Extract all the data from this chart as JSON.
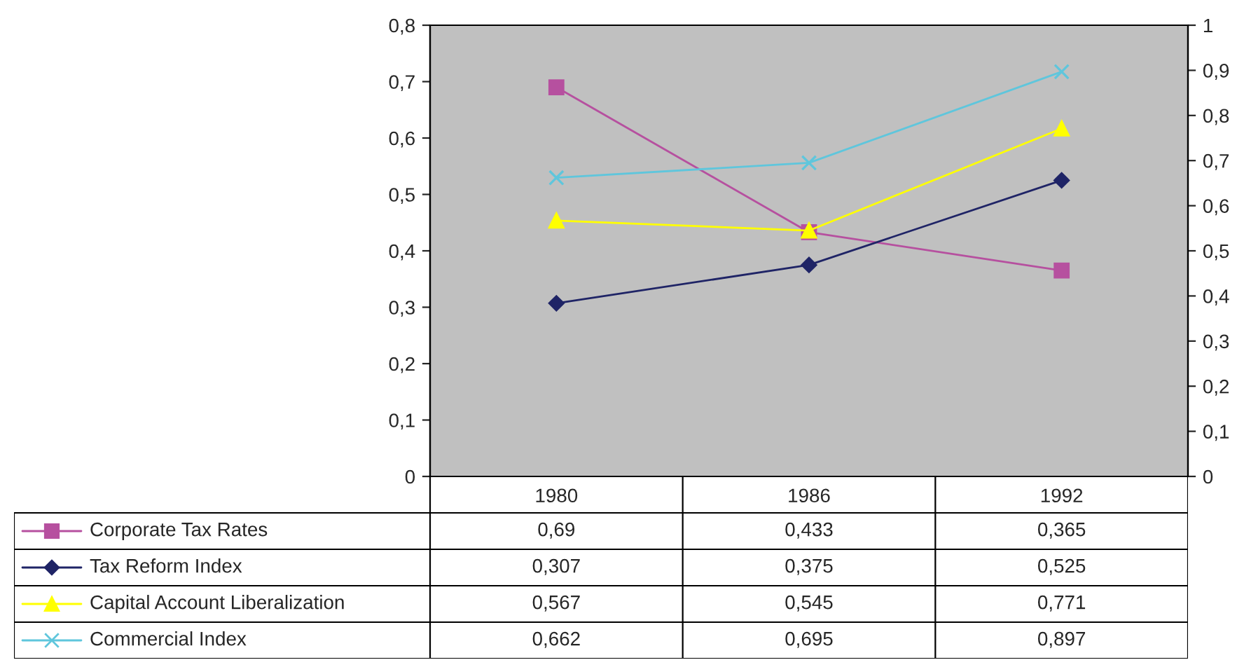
{
  "chart_data": {
    "type": "line",
    "categories": [
      "1980",
      "1986",
      "1992"
    ],
    "series": [
      {
        "name": "Corporate Tax Rates",
        "color": "#b6509f",
        "marker": "square",
        "values": [
          0.69,
          0.433,
          0.365
        ],
        "value_labels": [
          "0,69",
          "0,433",
          "0,365"
        ]
      },
      {
        "name": "Tax Reform Index",
        "color": "#1f2466",
        "marker": "diamond",
        "values": [
          0.307,
          0.375,
          0.525
        ],
        "value_labels": [
          "0,307",
          "0,375",
          "0,525"
        ]
      },
      {
        "name": "Capital Account Liberalization",
        "color": "#ffff00",
        "marker": "triangle",
        "axis": "y2",
        "values": [
          0.567,
          0.545,
          0.771
        ],
        "value_labels": [
          "0,567",
          "0,545",
          "0,771"
        ]
      },
      {
        "name": "Commercial Index",
        "color": "#5fc6dc",
        "marker": "cross",
        "axis": "y2",
        "values": [
          0.662,
          0.695,
          0.897
        ],
        "value_labels": [
          "0,662",
          "0,695",
          "0,897"
        ]
      }
    ],
    "ylim": [
      0,
      0.8
    ],
    "yticks": [
      {
        "value": 0,
        "label": "0"
      },
      {
        "value": 0.1,
        "label": "0,1"
      },
      {
        "value": 0.2,
        "label": "0,2"
      },
      {
        "value": 0.3,
        "label": "0,3"
      },
      {
        "value": 0.4,
        "label": "0,4"
      },
      {
        "value": 0.5,
        "label": "0,5"
      },
      {
        "value": 0.6,
        "label": "0,6"
      },
      {
        "value": 0.7,
        "label": "0,7"
      },
      {
        "value": 0.8,
        "label": "0,8"
      }
    ],
    "y2lim": [
      0,
      1
    ],
    "y2ticks": [
      {
        "value": 0,
        "label": "0"
      },
      {
        "value": 0.1,
        "label": "0,1"
      },
      {
        "value": 0.2,
        "label": "0,2"
      },
      {
        "value": 0.3,
        "label": "0,3"
      },
      {
        "value": 0.4,
        "label": "0,4"
      },
      {
        "value": 0.5,
        "label": "0,5"
      },
      {
        "value": 0.6,
        "label": "0,6"
      },
      {
        "value": 0.7,
        "label": "0,7"
      },
      {
        "value": 0.8,
        "label": "0,8"
      },
      {
        "value": 0.9,
        "label": "0,9"
      },
      {
        "value": 1,
        "label": "1"
      }
    ],
    "grid": false,
    "legend": "bottom",
    "line_style": "solid"
  }
}
